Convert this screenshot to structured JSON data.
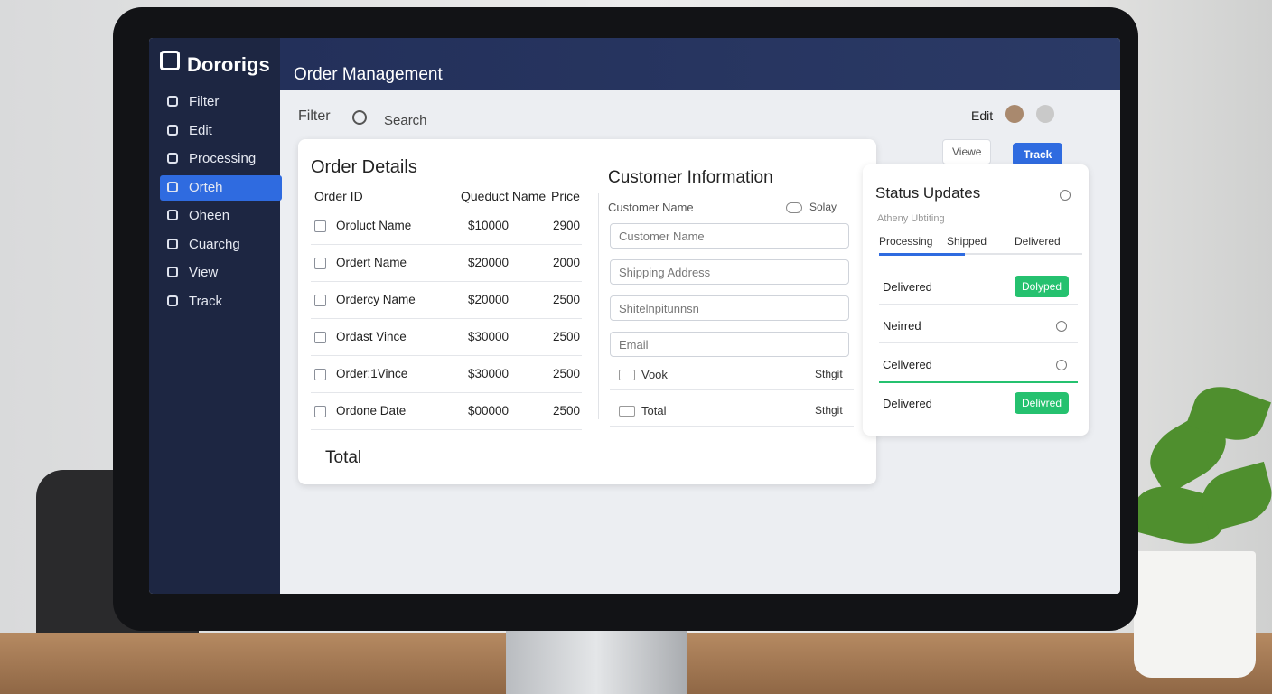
{
  "sidebar": {
    "brand": "Dororigs",
    "nav": [
      "Filter",
      "Edit",
      "Processing",
      "Orteh",
      "Oheen",
      "Cuarchg",
      "View",
      "Track"
    ],
    "active": 3
  },
  "header": {
    "title": "Order Management"
  },
  "toolbar": {
    "filter": "Filter",
    "search": "Search",
    "edit": "Edit",
    "view": "Viewe",
    "track": "Track"
  },
  "order_details": {
    "title": "Order Details",
    "columns": [
      "Order ID",
      "Queduct Name",
      "Price"
    ],
    "rows": [
      [
        "Oroluct Name",
        "$10000",
        "2900"
      ],
      [
        "Ordert Name",
        "$20000",
        "2000"
      ],
      [
        "Ordercy Name",
        "$20000",
        "2500"
      ],
      [
        "Ordast Vince",
        "$30000",
        "2500"
      ],
      [
        "Order:1Vince",
        "$30000",
        "2500"
      ],
      [
        "Ordone Date",
        "$00000",
        "2500"
      ]
    ],
    "total": "Total"
  },
  "customer_info": {
    "title": "Customer Information",
    "label": "Customer Name",
    "toggle": "Solay",
    "fields": [
      "Customer Name",
      "Shipping Address",
      "Shitelnpitunnsn",
      "Email"
    ],
    "options": [
      [
        "Vook",
        "Sthgit"
      ],
      [
        "Total",
        "Sthgit"
      ]
    ]
  },
  "status_updates": {
    "title": "Status Updates",
    "subtitle": "Atheny Ubtiting",
    "tabs": [
      "Processing",
      "Shipped",
      "Delivered"
    ],
    "rows": [
      {
        "label": "Delivered",
        "badge": "Dolyped"
      },
      {
        "label": "Neirred"
      },
      {
        "label": "Cellvered"
      },
      {
        "label": "Delivered",
        "badge": "Delivred"
      }
    ]
  }
}
